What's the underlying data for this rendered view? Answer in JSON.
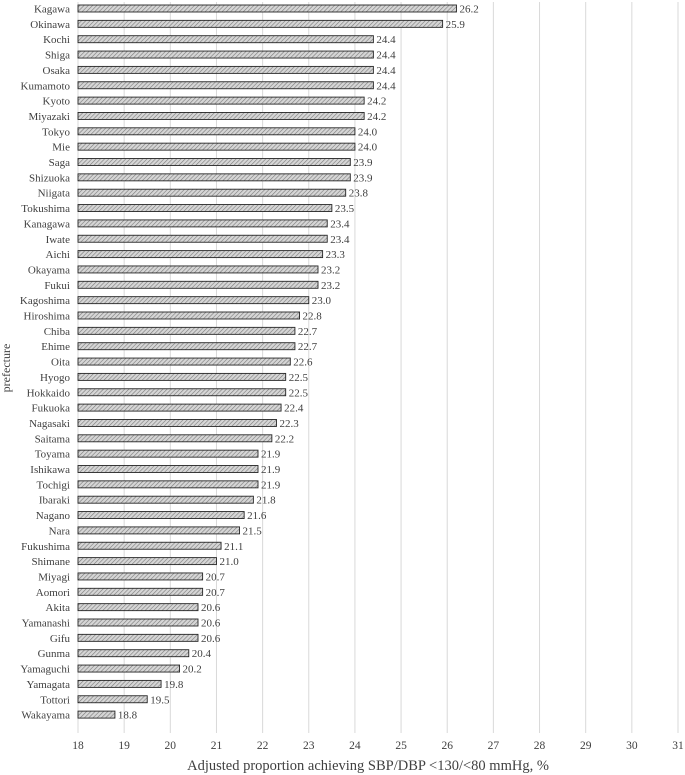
{
  "chart_data": {
    "type": "bar",
    "orientation": "horizontal",
    "xlabel": "Adjusted proportion achieving SBP/DBP <130/<80 mmHg, %",
    "ylabel": "prefecture",
    "xlim": [
      18,
      31
    ],
    "xticks": [
      "18",
      "19",
      "20",
      "21",
      "22",
      "23",
      "24",
      "25",
      "26",
      "27",
      "28",
      "29",
      "30",
      "31"
    ],
    "grid": "vertical",
    "bar_fill": "hatched gray",
    "categories": [
      "Kagawa",
      "Okinawa",
      "Kochi",
      "Shiga",
      "Osaka",
      "Kumamoto",
      "Kyoto",
      "Miyazaki",
      "Tokyo",
      "Mie",
      "Saga",
      "Shizuoka",
      "Niigata",
      "Tokushima",
      "Kanagawa",
      "Iwate",
      "Aichi",
      "Okayama",
      "Fukui",
      "Kagoshima",
      "Hiroshima",
      "Chiba",
      "Ehime",
      "Oita",
      "Hyogo",
      "Hokkaido",
      "Fukuoka",
      "Nagasaki",
      "Saitama",
      "Toyama",
      "Ishikawa",
      "Tochigi",
      "Ibaraki",
      "Nagano",
      "Nara",
      "Fukushima",
      "Shimane",
      "Miyagi",
      "Aomori",
      "Akita",
      "Yamanashi",
      "Gifu",
      "Gunma",
      "Yamaguchi",
      "Yamagata",
      "Tottori",
      "Wakayama"
    ],
    "values": [
      26.2,
      25.9,
      24.4,
      24.4,
      24.4,
      24.4,
      24.2,
      24.2,
      24.0,
      24.0,
      23.9,
      23.9,
      23.8,
      23.5,
      23.4,
      23.4,
      23.3,
      23.2,
      23.2,
      23.0,
      22.8,
      22.7,
      22.7,
      22.6,
      22.5,
      22.5,
      22.4,
      22.3,
      22.2,
      21.9,
      21.9,
      21.9,
      21.8,
      21.6,
      21.5,
      21.1,
      21.0,
      20.7,
      20.7,
      20.6,
      20.6,
      20.6,
      20.4,
      20.2,
      19.8,
      19.5,
      18.8
    ],
    "value_labels": [
      "26.2",
      "25.9",
      "24.4",
      "24.4",
      "24.4",
      "24.4",
      "24.2",
      "24.2",
      "24.0",
      "24.0",
      "23.9",
      "23.9",
      "23.8",
      "23.5",
      "23.4",
      "23.4",
      "23.3",
      "23.2",
      "23.2",
      "23.0",
      "22.8",
      "22.7",
      "22.7",
      "22.6",
      "22.5",
      "22.5",
      "22.4",
      "22.3",
      "22.2",
      "21.9",
      "21.9",
      "21.9",
      "21.8",
      "21.6",
      "21.5",
      "21.1",
      "21.0",
      "20.7",
      "20.7",
      "20.6",
      "20.6",
      "20.6",
      "20.4",
      "20.2",
      "19.8",
      "19.5",
      "18.8"
    ]
  }
}
